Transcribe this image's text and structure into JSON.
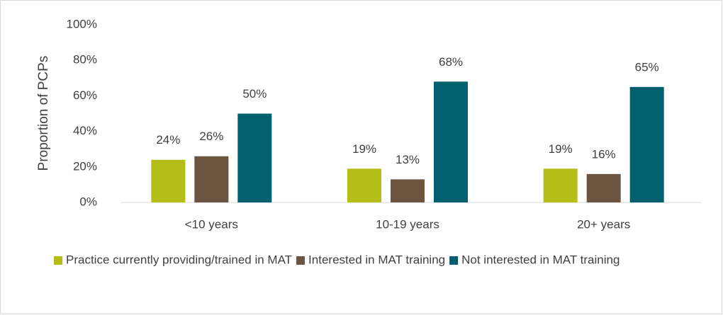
{
  "chart_data": {
    "type": "bar",
    "y_label": "Proportion of PCPs",
    "categories": [
      "<10 years",
      "10-19 years",
      "20+ years"
    ],
    "series": [
      {
        "name": "Practice currently providing/trained in MAT",
        "color": "#b5bd19",
        "values": [
          24,
          19,
          19
        ],
        "value_labels": [
          "24%",
          "19%",
          "19%"
        ]
      },
      {
        "name": "Interested in MAT training",
        "color": "#6b5540",
        "values": [
          26,
          13,
          16
        ],
        "value_labels": [
          "26%",
          "13%",
          "16%"
        ]
      },
      {
        "name": "Not interested in MAT training",
        "color": "#01606e",
        "values": [
          50,
          68,
          65
        ],
        "value_labels": [
          "50%",
          "68%",
          "65%"
        ]
      }
    ],
    "ylim": [
      0,
      100
    ],
    "yticks": [
      {
        "value": 0,
        "label": "0%"
      },
      {
        "value": 20,
        "label": "20%"
      },
      {
        "value": 40,
        "label": "40%"
      },
      {
        "value": 60,
        "label": "60%"
      },
      {
        "value": 80,
        "label": "80%"
      },
      {
        "value": 100,
        "label": "100%"
      }
    ],
    "grid": false,
    "legend": "bottom"
  }
}
